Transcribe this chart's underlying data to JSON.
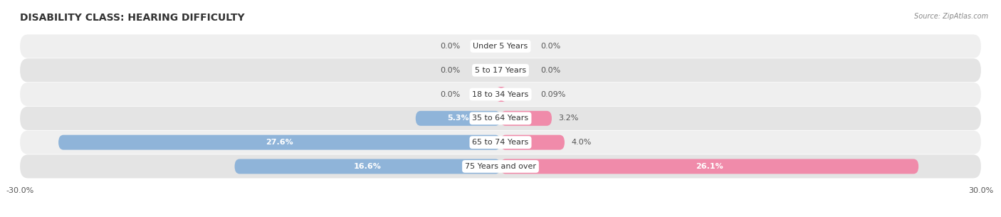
{
  "title": "DISABILITY CLASS: HEARING DIFFICULTY",
  "source": "Source: ZipAtlas.com",
  "categories": [
    "Under 5 Years",
    "5 to 17 Years",
    "18 to 34 Years",
    "35 to 64 Years",
    "65 to 74 Years",
    "75 Years and over"
  ],
  "male_values": [
    0.0,
    0.0,
    0.0,
    5.3,
    27.6,
    16.6
  ],
  "female_values": [
    0.0,
    0.0,
    0.09,
    3.2,
    4.0,
    26.1
  ],
  "male_labels": [
    "0.0%",
    "0.0%",
    "0.0%",
    "5.3%",
    "27.6%",
    "16.6%"
  ],
  "female_labels": [
    "0.0%",
    "0.0%",
    "0.09%",
    "3.2%",
    "4.0%",
    "26.1%"
  ],
  "male_color": "#8fb4d9",
  "female_color": "#f08baa",
  "row_bg_odd": "#efefef",
  "row_bg_even": "#e4e4e4",
  "xlim": 30.0,
  "title_fontsize": 10,
  "label_fontsize": 8,
  "cat_fontsize": 8,
  "tick_fontsize": 8,
  "background_color": "#ffffff"
}
